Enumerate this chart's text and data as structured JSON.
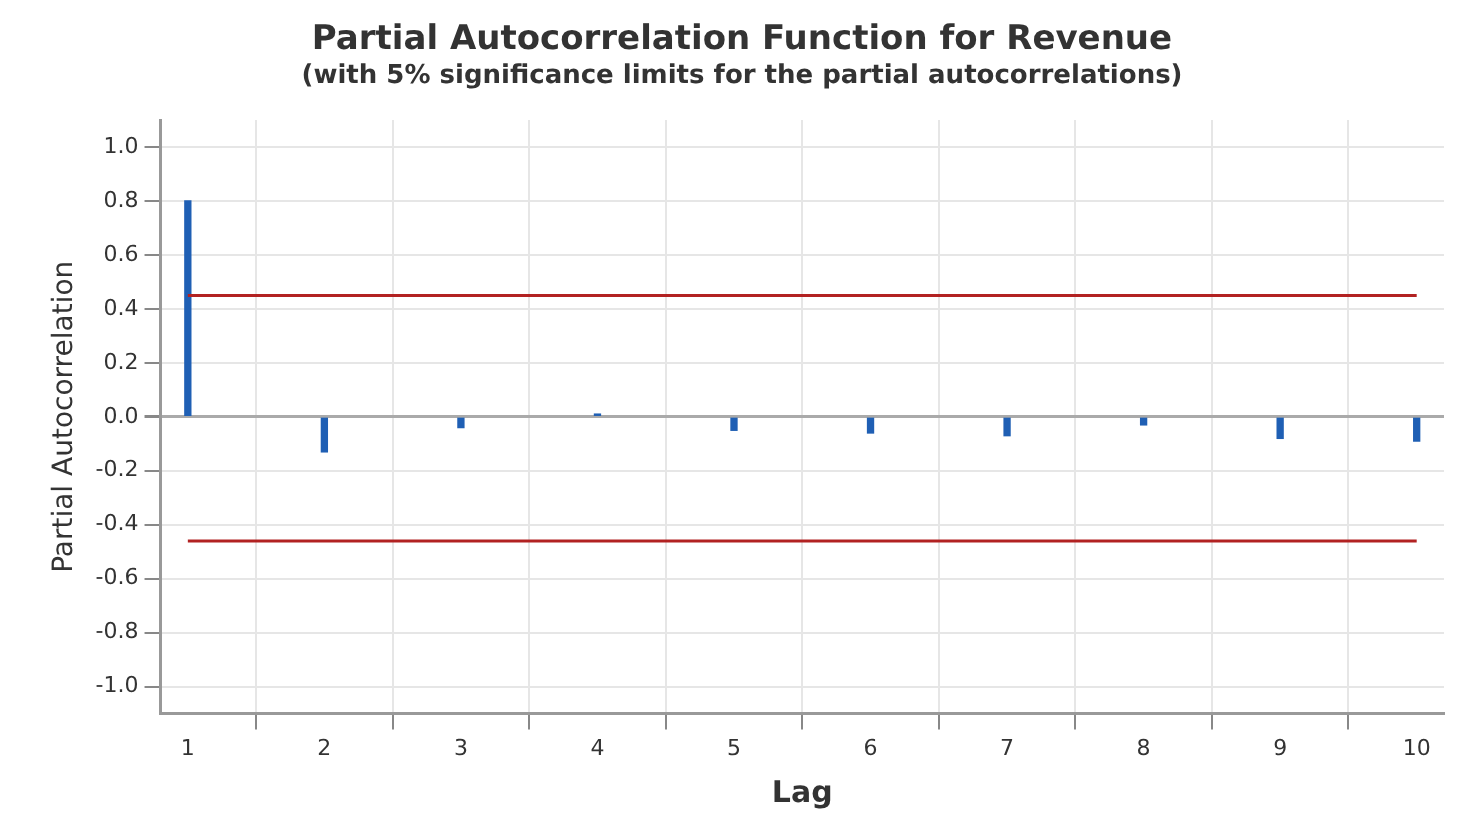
{
  "chart_data": {
    "type": "bar",
    "title": "Partial Autocorrelation Function for Revenue",
    "subtitle": "(with 5% significance limits for the partial autocorrelations)",
    "xlabel": "Lag",
    "ylabel": "Partial Autocorrelation",
    "x": [
      1,
      2,
      3,
      4,
      5,
      6,
      7,
      8,
      9,
      10
    ],
    "values": [
      0.8,
      -0.13,
      -0.04,
      0.01,
      -0.05,
      -0.06,
      -0.07,
      -0.03,
      -0.08,
      -0.09
    ],
    "color": "#1f5fb4",
    "xlim": [
      0.8,
      10.2
    ],
    "xticks": [
      1,
      2,
      3,
      4,
      5,
      6,
      7,
      8,
      9,
      10
    ],
    "ylim": [
      -1.1,
      1.1
    ],
    "yticks": [
      {
        "value": -1,
        "label": "-1.0"
      },
      -0.8,
      -0.6,
      -0.4,
      -0.2,
      {
        "value": 0,
        "label": "0.0"
      },
      0.2,
      0.4,
      0.6,
      0.8,
      {
        "value": 1,
        "label": "1.0"
      }
    ],
    "ref_lines": [
      {
        "axis": "y",
        "value": 0.45,
        "color": "#b22222"
      },
      {
        "axis": "y",
        "value": -0.46,
        "color": "#b22222"
      }
    ],
    "grid": true,
    "legend": false
  }
}
